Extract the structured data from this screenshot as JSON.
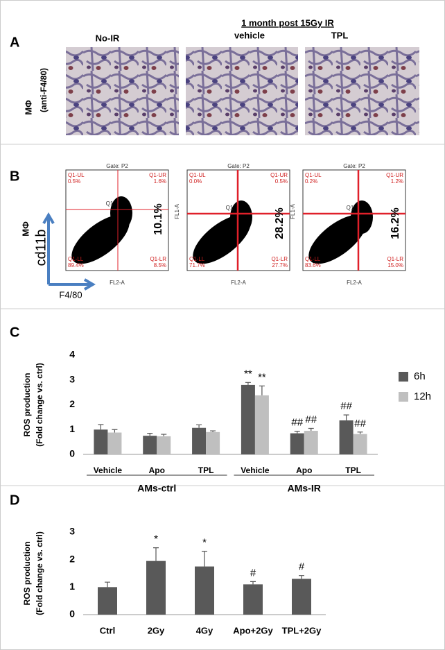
{
  "panel_a": {
    "label": "A",
    "titles": [
      "No-IR",
      "vehicle",
      "TPL"
    ],
    "header": "1 month post 15Gy IR",
    "row_label": "MΦ",
    "row_sublabel": "(anti-F4/80)"
  },
  "panel_b": {
    "label": "B",
    "row_label": "MΦ",
    "y_axis": "cd11b",
    "x_axis": "F4/80",
    "plots": [
      {
        "gate": "Gate: P2",
        "q_ul": "Q1-UL",
        "ul": "0.5%",
        "q_ur": "Q1-UR",
        "ur": "1.6%",
        "q_ll": "Q1-LL",
        "ll": "89.4%",
        "q_lr": "Q1-LR",
        "lr": "8.5%",
        "q1": "Q1",
        "total": "10.1%",
        "x_label": "FL2-A"
      },
      {
        "gate": "Gate: P2",
        "q_ul": "Q1-UL",
        "ul": "0.0%",
        "q_ur": "Q1-UR",
        "ur": "0.5%",
        "q_ll": "Q1-LL",
        "ll": "71.7%",
        "q_lr": "Q1-LR",
        "lr": "27.7%",
        "q1": "Q1",
        "total": "28.2%",
        "x_label": "FL2-A",
        "y_label": "FL1-A"
      },
      {
        "gate": "Gate: P2",
        "q_ul": "Q1-UL",
        "ul": "0.2%",
        "q_ur": "Q1-UR",
        "ur": "1.2%",
        "q_ll": "Q1-LL",
        "ll": "83.6%",
        "q_lr": "Q1-LR",
        "lr": "15.0%",
        "q1": "Q1",
        "total": "16.2%",
        "x_label": "FL2-A",
        "y_label": "FL1-A"
      }
    ]
  },
  "chart_data": [
    {
      "type": "bar",
      "panel": "C",
      "y_label": [
        "ROS production",
        "(Fold change vs. ctrl)"
      ],
      "categories": [
        "Vehicle",
        "Apo",
        "TPL",
        "Vehicle",
        "Apo",
        "TPL"
      ],
      "groups": [
        "AMs-ctrl",
        "AMs-IR"
      ],
      "series": [
        {
          "name": "6h",
          "color": "#595959",
          "values": [
            1.0,
            0.75,
            1.07,
            2.8,
            0.85,
            1.37
          ],
          "errors": [
            0.2,
            0.1,
            0.12,
            0.1,
            0.08,
            0.22
          ],
          "annotations": [
            null,
            null,
            null,
            "**",
            "##",
            "##"
          ]
        },
        {
          "name": "12h",
          "color": "#bfbfbf",
          "values": [
            0.88,
            0.73,
            0.9,
            2.38,
            0.95,
            0.82
          ],
          "errors": [
            0.12,
            0.08,
            0.05,
            0.38,
            0.1,
            0.08
          ],
          "annotations": [
            null,
            null,
            null,
            "**",
            "##",
            "##"
          ]
        }
      ],
      "ylim": [
        0,
        4
      ],
      "yticks": [
        0,
        1,
        2,
        3,
        4
      ],
      "legend": "right"
    },
    {
      "type": "bar",
      "panel": "D",
      "y_label": [
        "ROS production",
        "(Fold change vs. ctrl)"
      ],
      "categories": [
        "Ctrl",
        "2Gy",
        "4Gy",
        "Apo+2Gy",
        "TPL+2Gy"
      ],
      "series": [
        {
          "color": "#595959",
          "values": [
            1.0,
            1.95,
            1.75,
            1.1,
            1.3
          ],
          "errors": [
            0.18,
            0.48,
            0.55,
            0.1,
            0.12
          ],
          "annotations": [
            null,
            "*",
            "*",
            "#",
            "#"
          ]
        }
      ],
      "ylim": [
        0,
        3
      ],
      "yticks": [
        0,
        1,
        2,
        3
      ]
    }
  ]
}
